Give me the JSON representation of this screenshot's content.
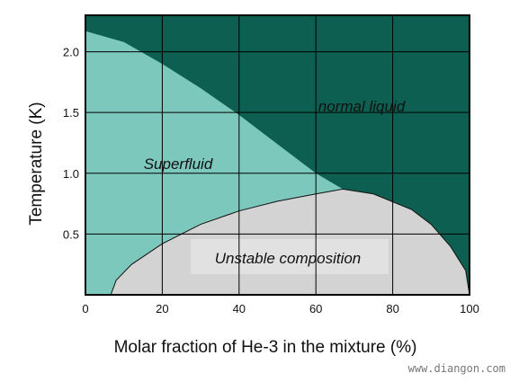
{
  "chart_data": {
    "type": "area",
    "xlabel": "Molar fraction of He-3 in the mixture (%)",
    "ylabel": "Temperature (K)",
    "xlim": [
      0,
      100
    ],
    "ylim": [
      0,
      2.3
    ],
    "xticks": [
      "0",
      "20",
      "40",
      "60",
      "80",
      "100"
    ],
    "yticks": [
      "0.5",
      "1.0",
      "1.5",
      "2.0"
    ],
    "grid": true,
    "regions": [
      {
        "label": "normal liquid",
        "color": "#0d5f51"
      },
      {
        "label": "Superfluid",
        "color": "#7cc8bd"
      },
      {
        "label": "Unstable composition",
        "color": "#d3d3d3"
      }
    ],
    "lambda_line": {
      "x": [
        0,
        10,
        20,
        30,
        40,
        50,
        60,
        67
      ],
      "y": [
        2.17,
        2.08,
        1.9,
        1.7,
        1.48,
        1.24,
        1.0,
        0.87
      ]
    },
    "phase_separation_boundary": {
      "x": [
        6.6,
        8,
        12,
        20,
        30,
        40,
        50,
        60,
        67,
        75,
        85,
        90,
        95,
        99,
        100
      ],
      "y": [
        0,
        0.12,
        0.25,
        0.42,
        0.58,
        0.69,
        0.77,
        0.83,
        0.87,
        0.83,
        0.7,
        0.58,
        0.4,
        0.2,
        0
      ]
    },
    "tricritical_point": {
      "x": 67,
      "y": 0.87
    }
  },
  "watermark": "www.diangon.com"
}
